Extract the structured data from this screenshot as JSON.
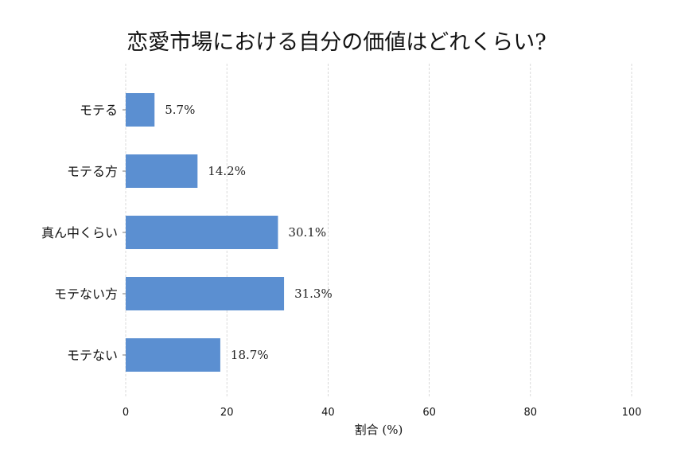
{
  "chart_data": {
    "type": "bar",
    "orientation": "horizontal",
    "title": "恋愛市場における自分の価値はどれくらい?",
    "xlabel": "割合 (%)",
    "ylabel": "",
    "categories": [
      "モテる",
      "モテる方",
      "真ん中くらい",
      "モテない方",
      "モテない"
    ],
    "values": [
      5.7,
      14.2,
      30.1,
      31.3,
      18.7
    ],
    "value_labels": [
      "5.7%",
      "14.2%",
      "30.1%",
      "31.3%",
      "18.7%"
    ],
    "xlim": [
      0,
      100
    ],
    "xticks": [
      0,
      20,
      40,
      60,
      80,
      100
    ],
    "xtick_labels": [
      "0",
      "20",
      "40",
      "60",
      "80",
      "100"
    ],
    "grid": "vertical dashed",
    "bar_color": "#5b8fd1",
    "grid_color": "#cfcfcf"
  }
}
